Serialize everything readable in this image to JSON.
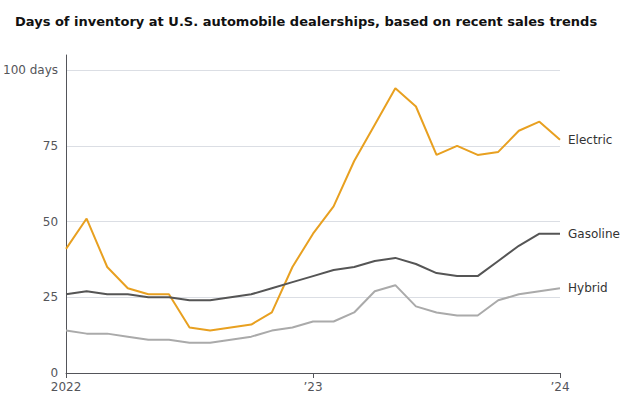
{
  "chart_data": {
    "type": "line",
    "title": "Days of inventory at U.S. automobile dealerships, based on recent sales trends",
    "categories": [
      "2022",
      null,
      null,
      null,
      null,
      null,
      null,
      null,
      null,
      null,
      null,
      null,
      "’23",
      null,
      null,
      null,
      null,
      null,
      null,
      null,
      null,
      null,
      null,
      null,
      "’24"
    ],
    "series": [
      {
        "name": "Electric",
        "color": "#e8a020",
        "values": [
          41,
          51,
          35,
          28,
          26,
          26,
          15,
          14,
          15,
          16,
          20,
          35,
          46,
          55,
          70,
          82,
          94,
          88,
          72,
          75,
          72,
          73,
          80,
          83,
          77
        ]
      },
      {
        "name": "Gasoline",
        "color": "#555555",
        "values": [
          26,
          27,
          26,
          26,
          25,
          25,
          24,
          24,
          25,
          26,
          28,
          30,
          32,
          34,
          35,
          37,
          38,
          36,
          33,
          32,
          32,
          37,
          42,
          46,
          46
        ]
      },
      {
        "name": "Hybrid",
        "color": "#aaaaaa",
        "values": [
          14,
          13,
          13,
          12,
          11,
          11,
          10,
          10,
          11,
          12,
          14,
          15,
          17,
          17,
          20,
          27,
          29,
          22,
          20,
          19,
          19,
          24,
          26,
          27,
          28
        ]
      }
    ],
    "ylim": [
      0,
      105
    ],
    "yticks": [
      0,
      25,
      50,
      75,
      {
        "value": 100,
        "label": "100 days"
      }
    ],
    "grid": true
  }
}
